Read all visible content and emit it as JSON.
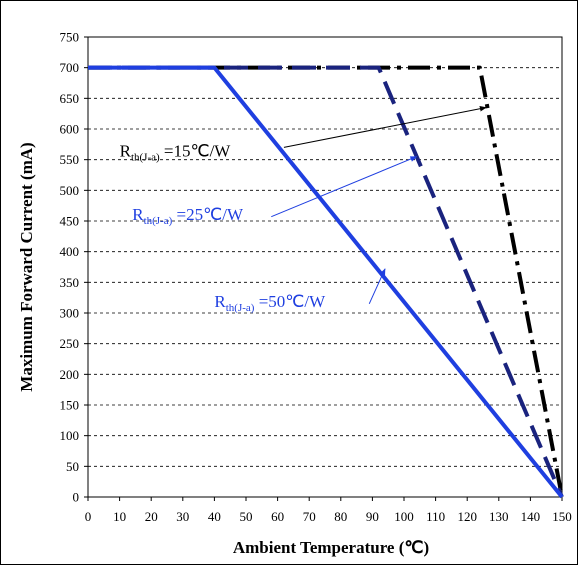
{
  "chart_data": {
    "type": "line",
    "xlabel": "Ambient Temperature (℃)",
    "ylabel": "Maximum Forward Current (mA)",
    "xlim": [
      0,
      150
    ],
    "ylim": [
      0,
      750
    ],
    "x_ticks": [
      0,
      10,
      20,
      30,
      40,
      50,
      60,
      70,
      80,
      90,
      100,
      110,
      120,
      130,
      140,
      150
    ],
    "y_ticks": [
      0,
      50,
      100,
      150,
      200,
      250,
      300,
      350,
      400,
      450,
      500,
      550,
      600,
      650,
      700,
      750
    ],
    "grid": "horizontal dashed",
    "legend": "none",
    "series": [
      {
        "name": "Rth(J-a) =15℃/W",
        "style": "dash-dot",
        "color": "#000000",
        "points": [
          [
            0,
            700
          ],
          [
            124,
            700
          ],
          [
            150,
            0
          ]
        ]
      },
      {
        "name": "Rth(J-a) =25℃/W",
        "style": "dashed",
        "color": "#1a237e",
        "points": [
          [
            0,
            700
          ],
          [
            92,
            700
          ],
          [
            150,
            0
          ]
        ]
      },
      {
        "name": "Rth(J-a) =50℃/W",
        "style": "solid",
        "color": "#1f3fe0",
        "points": [
          [
            0,
            700
          ],
          [
            40,
            700
          ],
          [
            150,
            0
          ]
        ]
      }
    ],
    "annotations": [
      {
        "pre": "R",
        "sub": "th(J-a)",
        "post": " =15℃/W",
        "color": "#000000",
        "text_at": [
          10,
          555
        ],
        "arrow_from": [
          62,
          570
        ],
        "arrow_to": [
          126,
          635
        ]
      },
      {
        "pre": "R",
        "sub": "th(J-a)",
        "post": " =25℃/W",
        "color": "#1f3fe0",
        "text_at": [
          14,
          452
        ],
        "arrow_from": [
          58,
          457
        ],
        "arrow_to": [
          104,
          555
        ]
      },
      {
        "pre": "R",
        "sub": "th(J-a)",
        "post": " =50℃/W",
        "color": "#1f3fe0",
        "text_at": [
          40,
          310
        ],
        "arrow_from": [
          89,
          315
        ],
        "arrow_to": [
          94,
          372
        ]
      }
    ]
  }
}
